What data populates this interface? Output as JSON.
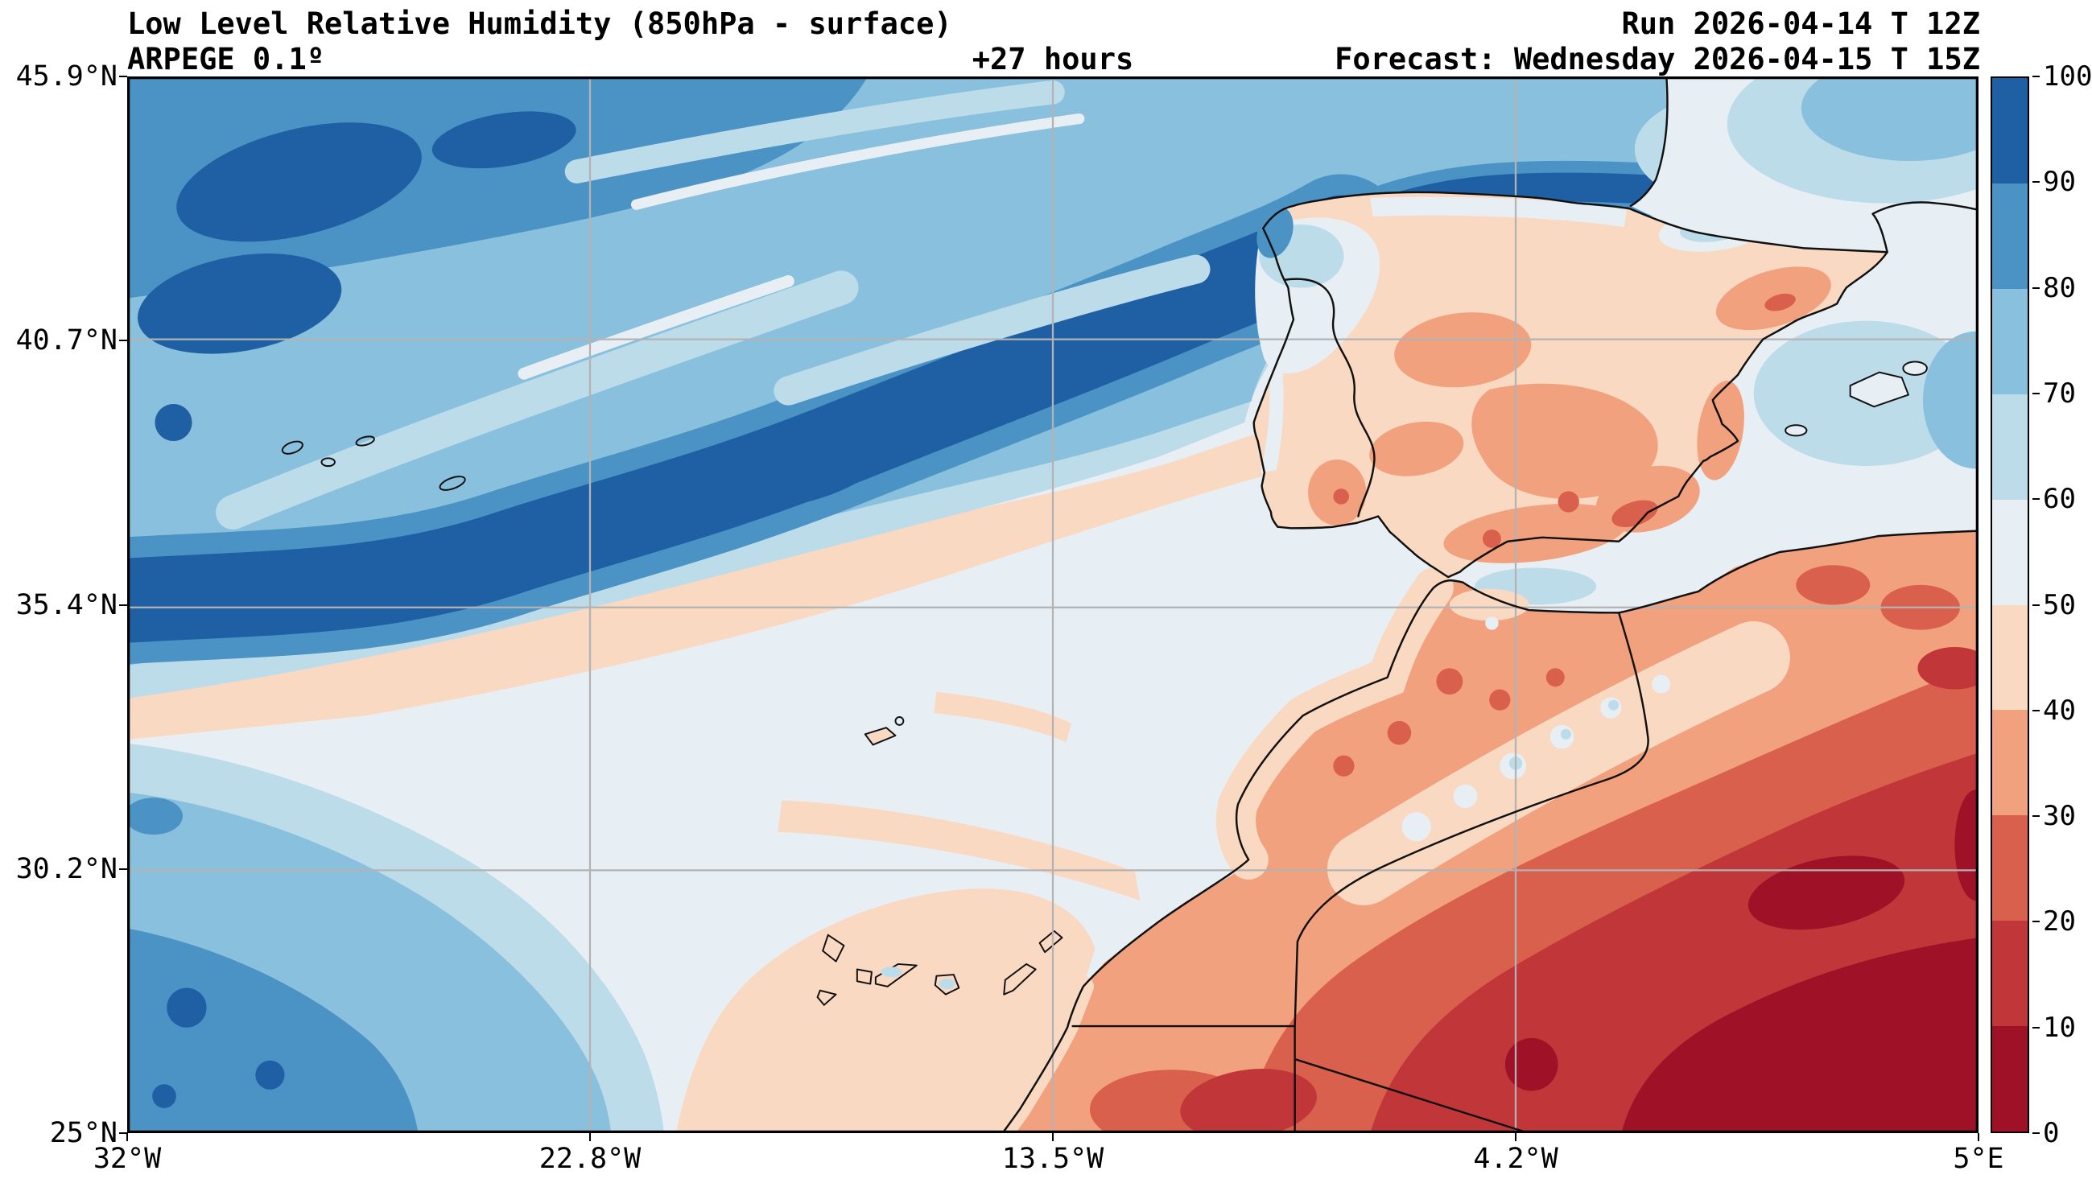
{
  "header": {
    "title": "Low Level Relative Humidity (850hPa - surface)",
    "model": "ARPEGE 0.1º",
    "lead_time": "+27 hours",
    "run": "Run 2026-04-14 T 12Z",
    "forecast": "Forecast: Wednesday 2026-04-15 T 15Z"
  },
  "map": {
    "x_ticks": [
      "32°W",
      "22.8°W",
      "13.5°W",
      "4.2°W",
      "5°E"
    ],
    "y_ticks": [
      "45.9°N",
      "40.7°N",
      "35.4°N",
      "30.2°N",
      "25°N"
    ]
  },
  "colorbar": {
    "ticks": [
      "100",
      "90",
      "80",
      "70",
      "60",
      "50",
      "40",
      "30",
      "20",
      "10",
      "0"
    ],
    "segments_bottom_to_top": [
      "#9e1127",
      "#c13639",
      "#d9604c",
      "#f2a17f",
      "#fad9c2",
      "#e8eff4",
      "#bddcea",
      "#89c0dd",
      "#4a93c4",
      "#1f5fa3"
    ]
  },
  "palette": {
    "c0_10": "#9e1127",
    "c10_20": "#c13639",
    "c20_30": "#d9604c",
    "c30_40": "#f2a17f",
    "c40_50": "#fad9c2",
    "c50_60": "#e8eff4",
    "c60_70": "#bddcea",
    "c70_80": "#89c0dd",
    "c80_90": "#4a93c4",
    "c90_100": "#1f5fa3",
    "grid": "#b3b3b3",
    "coastline": "#111111"
  },
  "chart_data": {
    "type": "filled_contour_map",
    "variable": "Low Level Relative Humidity (850hPa - surface)",
    "model": "ARPEGE 0.1º",
    "run": "2026-04-14 12Z",
    "valid": "Wednesday 2026-04-15 15Z",
    "lead_time_hours": 27,
    "levels": [
      0,
      10,
      20,
      30,
      40,
      50,
      60,
      70,
      80,
      90,
      100
    ],
    "lon_ticks": [
      "32°W",
      "22.8°W",
      "13.5°W",
      "4.2°W",
      "5°E"
    ],
    "lat_ticks": [
      "25°N",
      "30.2°N",
      "35.4°N",
      "40.7°N",
      "45.9°N"
    ],
    "legend_position": "right",
    "grid": true
  }
}
